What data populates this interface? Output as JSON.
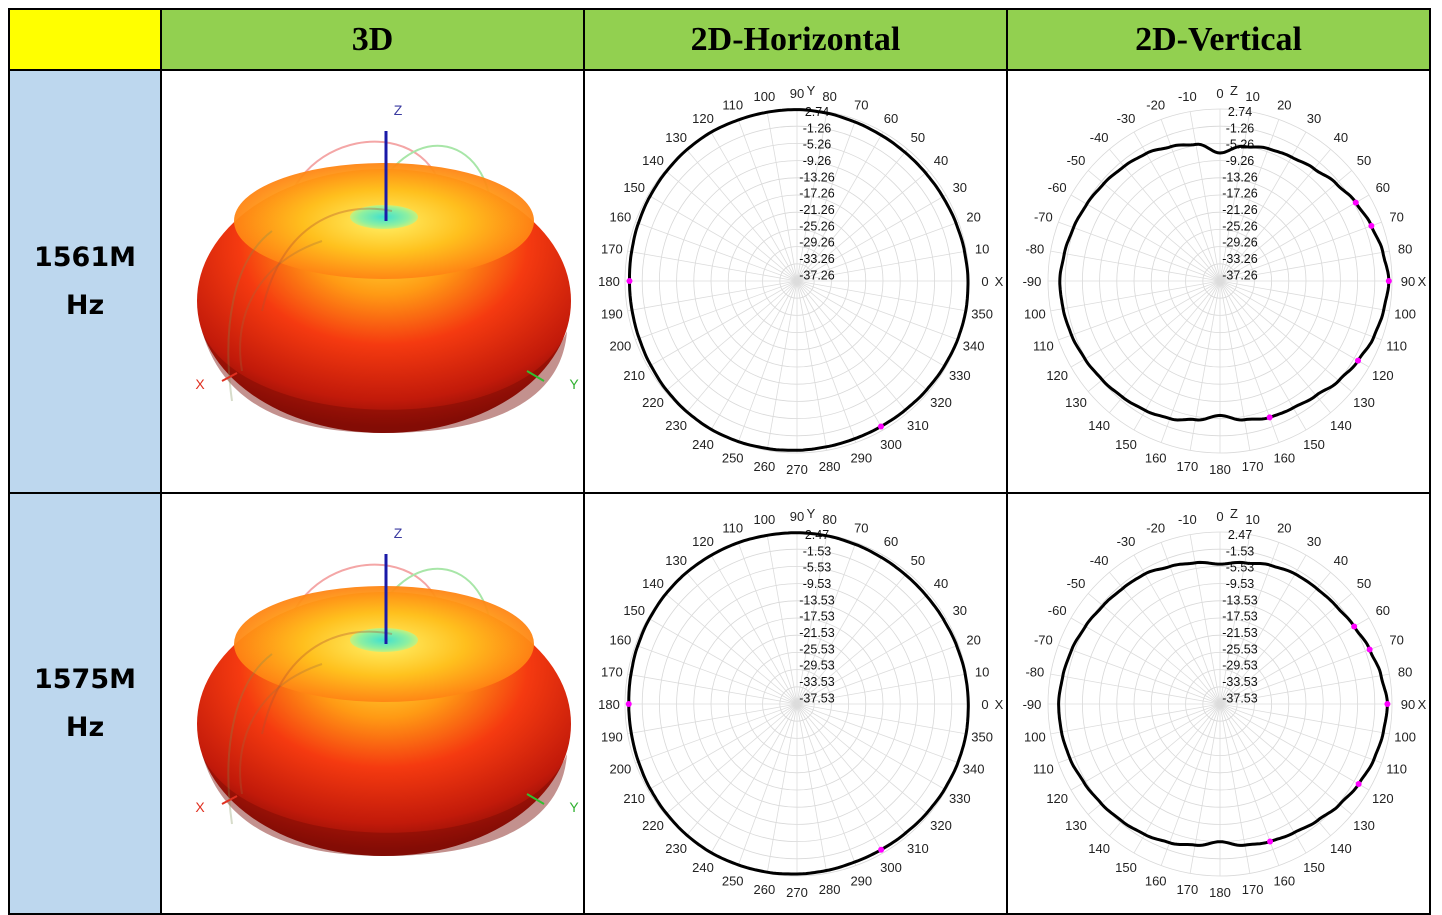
{
  "header": {
    "corner": "",
    "col_3d": "3D",
    "col_h": "2D-Horizontal",
    "col_v": "2D-Vertical"
  },
  "rows": [
    {
      "freq_line1": "1561M",
      "freq_line2": "Hz"
    },
    {
      "freq_line1": "1575M",
      "freq_line2": "Hz"
    }
  ],
  "axis_labels": {
    "z": "Z",
    "x": "X",
    "y": "Y"
  },
  "colors": {
    "header_corner": "#ffff00",
    "header": "#92d050",
    "freq_cell": "#bdd7ee",
    "marker": "#ff00ff",
    "z_axis": "#1a1aa8"
  },
  "chart_data": [
    {
      "type": "polar",
      "plane": "horizontal",
      "row": "1561MHz",
      "angle_ticks": [
        "90",
        "80",
        "70",
        "60",
        "50",
        "40",
        "30",
        "20",
        "10",
        "0",
        "350",
        "340",
        "330",
        "320",
        "310",
        "300",
        "290",
        "280",
        "270",
        "260",
        "250",
        "240",
        "230",
        "220",
        "210",
        "200",
        "190",
        "180",
        "170",
        "160",
        "150",
        "140",
        "130",
        "120",
        "110",
        "100"
      ],
      "axis_tags": {
        "top": "Y",
        "right": "X"
      },
      "ring_labels": [
        "2.74",
        "-1.26",
        "-5.26",
        "-9.26",
        "-13.26",
        "-17.26",
        "-21.26",
        "-25.26",
        "-29.26",
        "-33.26",
        "-37.26"
      ],
      "markers_deg": [
        150,
        270
      ],
      "gain_by_angle": [
        2.6,
        2.4,
        2.1,
        1.9,
        1.8,
        1.8,
        1.9,
        2.1,
        2.3,
        2.5,
        2.6,
        2.5,
        2.3,
        2.1,
        1.9,
        1.8,
        1.8,
        1.9,
        2.1,
        2.3,
        2.5,
        2.6,
        2.5,
        2.3,
        2.0,
        1.8,
        1.7,
        1.7,
        1.8,
        2.0,
        2.2,
        2.4,
        2.6,
        2.7,
        2.6,
        2.6
      ]
    },
    {
      "type": "polar",
      "plane": "vertical",
      "row": "1561MHz",
      "angle_ticks": [
        "0",
        "10",
        "20",
        "30",
        "40",
        "50",
        "60",
        "70",
        "80",
        "90",
        "100",
        "110",
        "120",
        "130",
        "140",
        "150",
        "160",
        "170",
        "180",
        "170",
        "160",
        "150",
        "140",
        "130",
        "120",
        "110",
        "100",
        "-90",
        "-80",
        "-70",
        "-60",
        "-50",
        "-40",
        "-30",
        "-20",
        "-10"
      ],
      "axis_tags": {
        "top": "Z",
        "right": "X"
      },
      "ring_labels": [
        "2.74",
        "-1.26",
        "-5.26",
        "-9.26",
        "-13.26",
        "-17.26",
        "-21.26",
        "-25.26",
        "-29.26",
        "-33.26",
        "-37.26"
      ],
      "markers_deg": [
        60,
        70,
        90,
        120,
        160
      ],
      "gain_by_angle": [
        -7.5,
        -5.5,
        -4.5,
        -4.0,
        -3.2,
        -2.0,
        -0.8,
        0.2,
        1.2,
        2.0,
        1.4,
        0.8,
        -0.2,
        -1.2,
        -2.5,
        -3.2,
        -3.5,
        -4.5,
        -6.0,
        -4.5,
        -3.2,
        -2.5,
        -2.0,
        -1.5,
        -1.0,
        -0.5,
        -0.2,
        0.0,
        -0.5,
        -1.0,
        -1.5,
        -2.0,
        -2.5,
        -3.0,
        -4.0,
        -5.0
      ]
    },
    {
      "type": "polar",
      "plane": "horizontal",
      "row": "1575MHz",
      "angle_ticks": [
        "90",
        "80",
        "70",
        "60",
        "50",
        "40",
        "30",
        "20",
        "10",
        "0",
        "350",
        "340",
        "330",
        "320",
        "310",
        "300",
        "290",
        "280",
        "270",
        "260",
        "250",
        "240",
        "230",
        "220",
        "210",
        "200",
        "190",
        "180",
        "170",
        "160",
        "150",
        "140",
        "130",
        "120",
        "110",
        "100"
      ],
      "axis_tags": {
        "top": "Y",
        "right": "X"
      },
      "ring_labels": [
        "2.47",
        "-1.53",
        "-5.53",
        "-9.53",
        "-13.53",
        "-17.53",
        "-21.53",
        "-25.53",
        "-29.53",
        "-33.53",
        "-37.53"
      ],
      "markers_deg": [
        150,
        270
      ],
      "gain_by_angle": [
        2.3,
        2.2,
        2.0,
        1.8,
        1.7,
        1.7,
        1.8,
        2.0,
        2.2,
        2.3,
        2.4,
        2.3,
        2.1,
        1.9,
        1.7,
        1.6,
        1.6,
        1.8,
        2.0,
        2.2,
        2.3,
        2.4,
        2.3,
        2.1,
        1.9,
        1.7,
        1.6,
        1.6,
        1.7,
        1.9,
        2.1,
        2.3,
        2.4,
        2.4,
        2.4,
        2.3
      ]
    },
    {
      "type": "polar",
      "plane": "vertical",
      "row": "1575MHz",
      "angle_ticks": [
        "0",
        "10",
        "20",
        "30",
        "40",
        "50",
        "60",
        "70",
        "80",
        "90",
        "100",
        "110",
        "120",
        "130",
        "140",
        "150",
        "160",
        "170",
        "180",
        "170",
        "160",
        "150",
        "140",
        "130",
        "120",
        "110",
        "100",
        "-90",
        "-80",
        "-70",
        "-60",
        "-50",
        "-40",
        "-30",
        "-20",
        "-10"
      ],
      "axis_tags": {
        "top": "Z",
        "right": "X"
      },
      "ring_labels": [
        "2.47",
        "-1.53",
        "-5.53",
        "-9.53",
        "-13.53",
        "-17.53",
        "-21.53",
        "-25.53",
        "-29.53",
        "-33.53",
        "-37.53"
      ],
      "markers_deg": [
        60,
        70,
        90,
        120,
        160
      ],
      "gain_by_angle": [
        -5.0,
        -4.2,
        -3.2,
        -2.6,
        -2.5,
        -2.2,
        -1.5,
        -0.5,
        0.5,
        1.4,
        1.0,
        0.5,
        -0.3,
        -1.2,
        -2.2,
        -3.0,
        -3.5,
        -4.2,
        -5.5,
        -4.2,
        -3.2,
        -2.5,
        -2.0,
        -1.5,
        -1.0,
        -0.4,
        -0.1,
        0.0,
        -0.4,
        -0.8,
        -1.4,
        -2.0,
        -2.4,
        -2.6,
        -3.5,
        -4.2
      ]
    }
  ]
}
